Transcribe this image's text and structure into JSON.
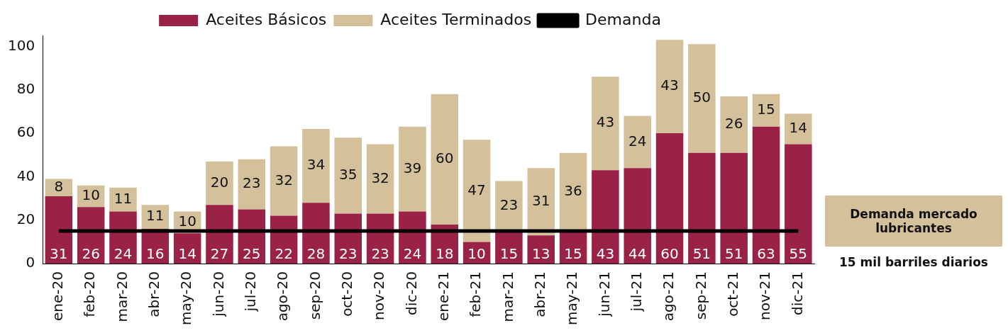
{
  "chart_data": {
    "type": "bar",
    "stacked": true,
    "categories": [
      "ene-20",
      "feb-20",
      "mar-20",
      "abr-20",
      "may-20",
      "jun-20",
      "jul-20",
      "ago-20",
      "sep-20",
      "oct-20",
      "nov-20",
      "dic-20",
      "ene-21",
      "feb-21",
      "mar-21",
      "abr-21",
      "may-21",
      "jun-21",
      "jul-21",
      "ago-21",
      "sep-21",
      "oct-21",
      "nov-21",
      "dic-21"
    ],
    "series": [
      {
        "name": "Aceites Básicos",
        "color": "#9b2247",
        "values": [
          31,
          26,
          24,
          16,
          14,
          27,
          25,
          22,
          28,
          23,
          23,
          24,
          18,
          10,
          15,
          13,
          15,
          43,
          44,
          60,
          51,
          51,
          63,
          55
        ],
        "value_labels": [
          "31",
          "26",
          "24",
          "16",
          "14",
          "27",
          "25",
          "22",
          "28",
          "23",
          "23",
          "24",
          "18",
          "10",
          "15",
          "13",
          "15",
          "43",
          "44",
          "60",
          "51",
          "51",
          "63",
          "55"
        ]
      },
      {
        "name": "Aceites Terminados",
        "color": "#d4c19c",
        "values": [
          8,
          10,
          11,
          11,
          10,
          20,
          23,
          32,
          34,
          35,
          32,
          39,
          60,
          47,
          23,
          31,
          36,
          43,
          24,
          43,
          50,
          26,
          15,
          14
        ],
        "value_labels": [
          "8",
          "10",
          "11",
          "11",
          "10",
          "20",
          "23",
          "32",
          "34",
          "35",
          "32",
          "39",
          "60",
          "47",
          "23",
          "31",
          "36",
          "43",
          "24",
          "43",
          "50",
          "26",
          "15",
          "14"
        ]
      },
      {
        "name": "Demanda",
        "type": "line",
        "color": "#000000",
        "values": [
          15,
          15,
          15,
          15,
          15,
          15,
          15,
          15,
          15,
          15,
          15,
          15,
          15,
          15,
          15,
          15,
          15,
          15,
          15,
          15,
          15,
          15,
          15,
          15
        ]
      }
    ],
    "ylim": [
      0,
      105
    ],
    "yticks": [
      0,
      20,
      40,
      60,
      80,
      100
    ],
    "grid": false,
    "legend": "top",
    "marker": "none",
    "annotations": [
      "Demanda mercado lubricantes",
      "15 mil barriles diarios"
    ]
  }
}
